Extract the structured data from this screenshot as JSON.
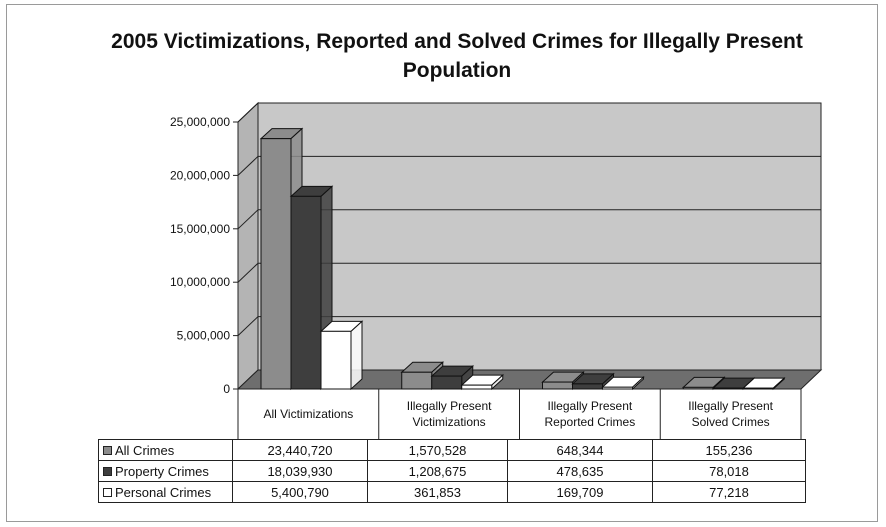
{
  "chart_data": {
    "type": "bar",
    "title": "2005 Victimizations, Reported and Solved Crimes for Illegally Present Population",
    "categories": [
      "All Victimizations",
      "Illegally Present Victimizations",
      "Illegally Present Reported Crimes",
      "Illegally Present Solved Crimes"
    ],
    "series": [
      {
        "name": "All Crimes",
        "color": "#8c8c8c",
        "values": [
          23440720,
          1570528,
          648344,
          155236
        ],
        "labels": [
          "23,440,720",
          "1,570,528",
          "648,344",
          "155,236"
        ]
      },
      {
        "name": "Property Crimes",
        "color": "#3e3e3e",
        "values": [
          18039930,
          1208675,
          478635,
          78018
        ],
        "labels": [
          "18,039,930",
          "1,208,675",
          "478,635",
          "78,018"
        ]
      },
      {
        "name": "Personal Crimes",
        "color": "#ffffff",
        "values": [
          5400790,
          361853,
          169709,
          77218
        ],
        "labels": [
          "5,400,790",
          "361,853",
          "169,709",
          "77,218"
        ]
      }
    ],
    "yticks": [
      "0",
      "5,000,000",
      "10,000,000",
      "15,000,000",
      "20,000,000",
      "25,000,000"
    ],
    "ylim": [
      0,
      25000000
    ],
    "grid": true,
    "legend": "data table below chart",
    "three_d": true
  }
}
